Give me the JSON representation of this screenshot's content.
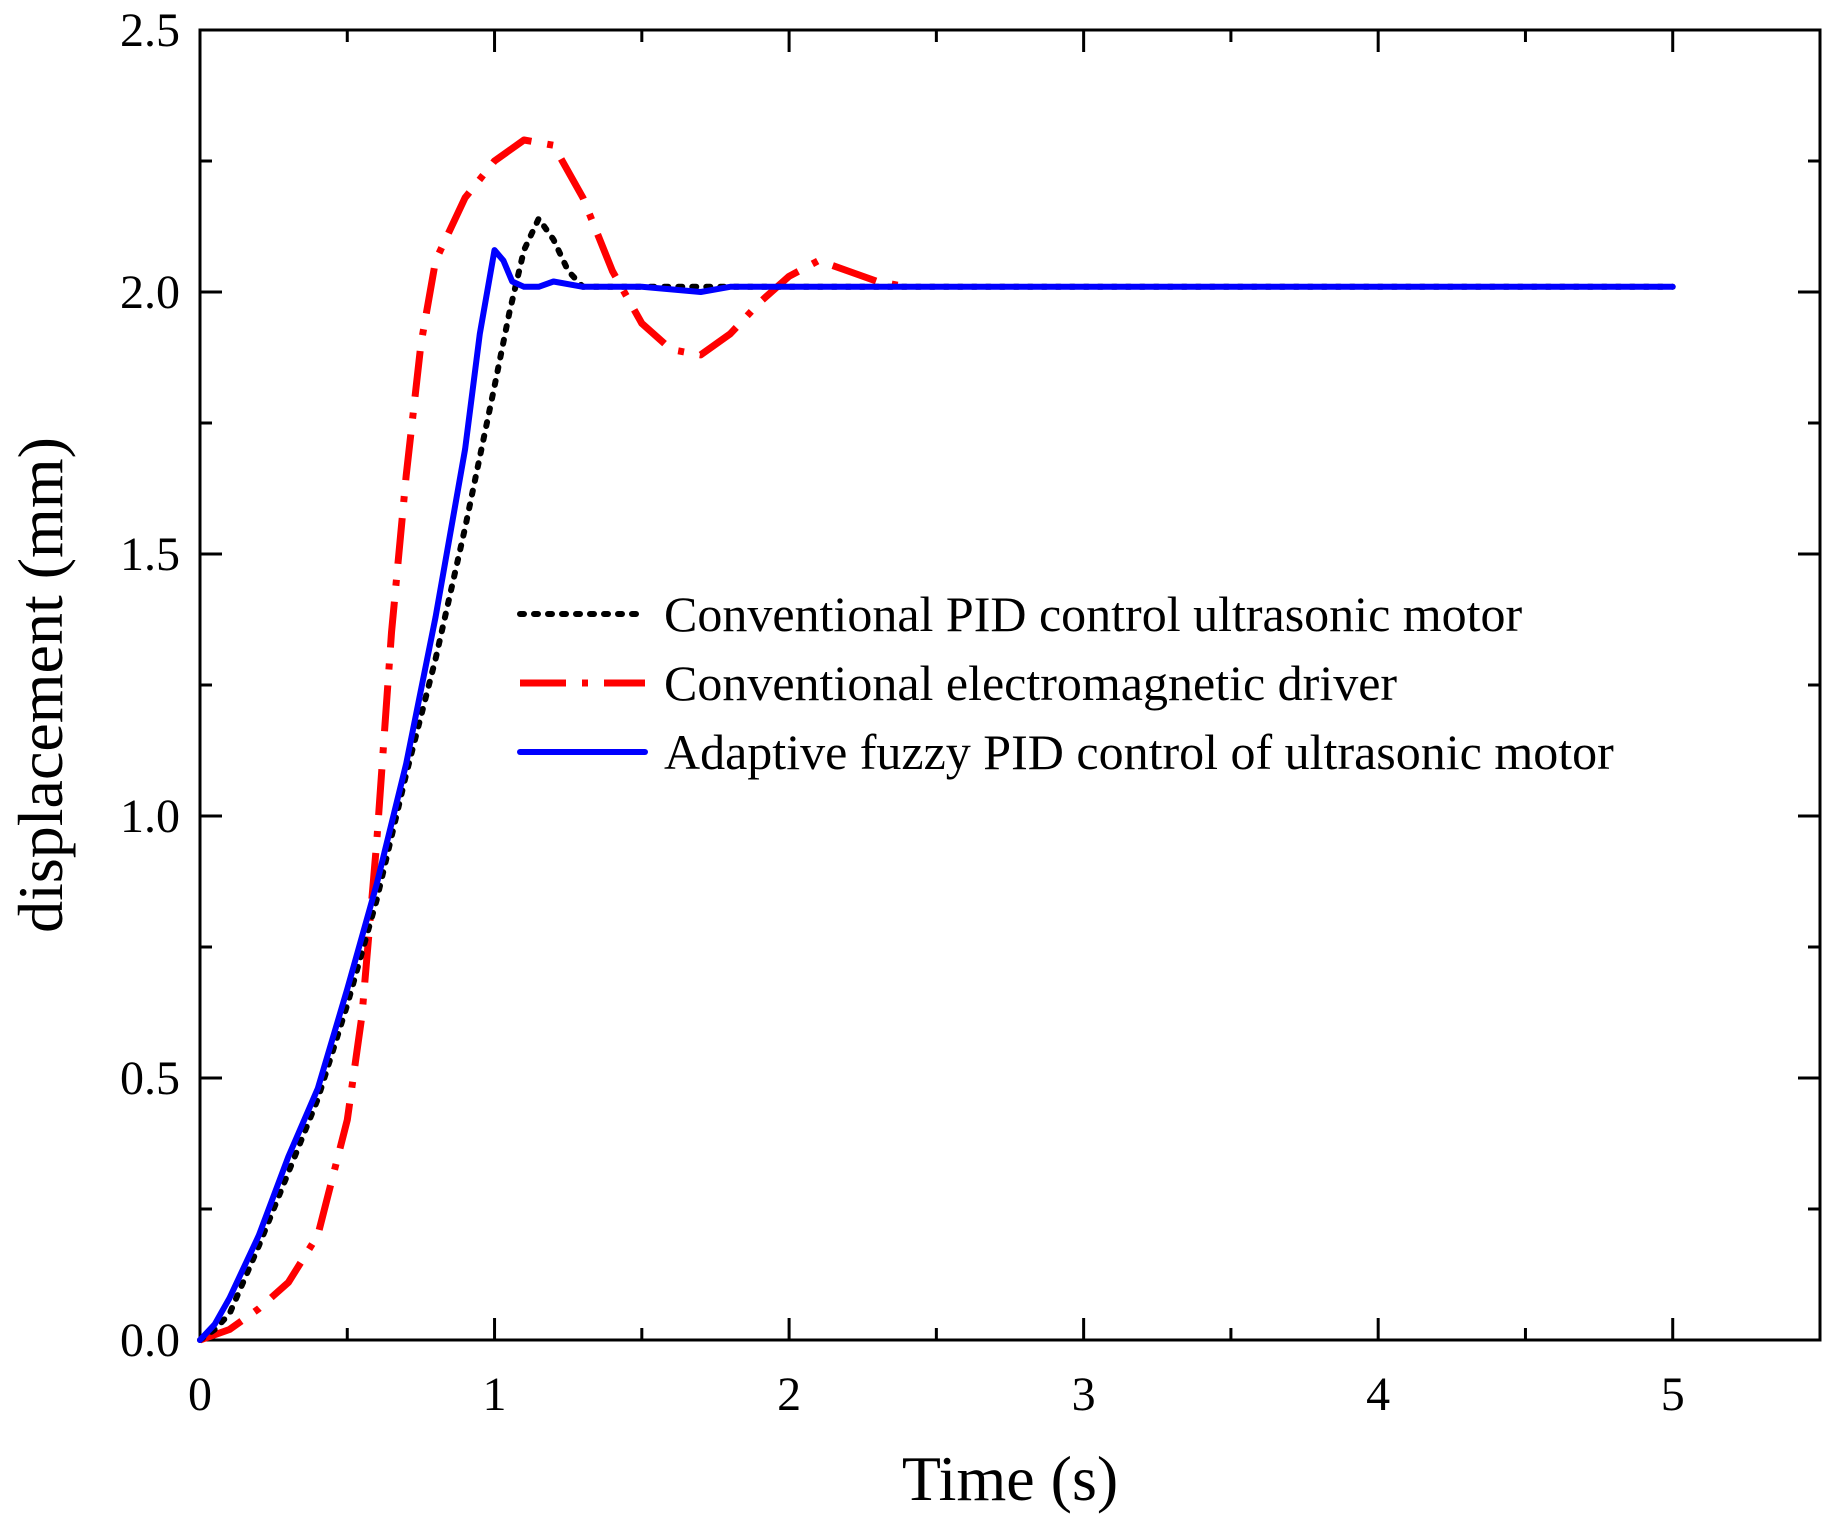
{
  "chart_data": {
    "type": "line",
    "title": "",
    "xlabel": "Time (s)",
    "ylabel": "displacement (mm)",
    "xlim": [
      0,
      5.5
    ],
    "ylim": [
      0,
      2.5
    ],
    "x_ticks": [
      0,
      1,
      2,
      3,
      4,
      5
    ],
    "x_tick_labels": [
      "0",
      "1",
      "2",
      "3",
      "4",
      "5"
    ],
    "y_ticks": [
      0,
      0.5,
      1.0,
      1.5,
      2.0,
      2.5
    ],
    "y_tick_labels": [
      "0.0",
      "0.5",
      "1.0",
      "1.5",
      "2.0",
      "2.5"
    ],
    "grid": false,
    "legend_position": "center-right",
    "series": [
      {
        "name": "Conventional PID control ultrasonic motor",
        "color": "#000000",
        "style": "dotted",
        "x": [
          0,
          0.05,
          0.1,
          0.2,
          0.3,
          0.4,
          0.5,
          0.6,
          0.7,
          0.8,
          0.9,
          1.0,
          1.05,
          1.1,
          1.15,
          1.2,
          1.25,
          1.3,
          1.4,
          1.6,
          1.8,
          2.0,
          2.5,
          3.0,
          4.0,
          5.0
        ],
        "y": [
          0,
          0.02,
          0.05,
          0.18,
          0.32,
          0.46,
          0.64,
          0.84,
          1.08,
          1.3,
          1.55,
          1.82,
          1.96,
          2.08,
          2.14,
          2.1,
          2.04,
          2.01,
          2.01,
          2.01,
          2.01,
          2.01,
          2.01,
          2.01,
          2.01,
          2.01
        ]
      },
      {
        "name": "Conventional electromagnetic driver",
        "color": "#ff0000",
        "style": "dash-dot",
        "x": [
          0,
          0.1,
          0.2,
          0.3,
          0.4,
          0.5,
          0.55,
          0.6,
          0.65,
          0.7,
          0.75,
          0.8,
          0.9,
          1.0,
          1.1,
          1.2,
          1.3,
          1.4,
          1.5,
          1.6,
          1.7,
          1.8,
          1.9,
          2.0,
          2.1,
          2.2,
          2.3,
          2.4
        ],
        "y": [
          0,
          0.02,
          0.06,
          0.11,
          0.2,
          0.42,
          0.62,
          0.95,
          1.35,
          1.65,
          1.9,
          2.06,
          2.18,
          2.25,
          2.29,
          2.28,
          2.18,
          2.04,
          1.94,
          1.89,
          1.88,
          1.92,
          1.98,
          2.03,
          2.06,
          2.04,
          2.02,
          2.01
        ]
      },
      {
        "name": "Adaptive fuzzy PID control of ultrasonic motor",
        "color": "#0000ff",
        "style": "solid",
        "x": [
          0,
          0.05,
          0.1,
          0.2,
          0.3,
          0.4,
          0.5,
          0.6,
          0.7,
          0.8,
          0.9,
          0.95,
          1.0,
          1.03,
          1.06,
          1.1,
          1.15,
          1.2,
          1.3,
          1.5,
          1.7,
          1.8,
          2.0,
          3.0,
          4.0,
          5.0
        ],
        "y": [
          0,
          0.03,
          0.08,
          0.2,
          0.35,
          0.48,
          0.67,
          0.87,
          1.1,
          1.38,
          1.7,
          1.92,
          2.08,
          2.06,
          2.02,
          2.01,
          2.01,
          2.02,
          2.01,
          2.01,
          2.0,
          2.01,
          2.01,
          2.01,
          2.01,
          2.01
        ]
      }
    ]
  }
}
